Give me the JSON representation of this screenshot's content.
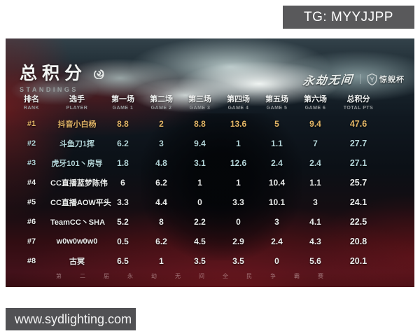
{
  "overlays": {
    "telegram_badge": "TG: MYYJJPP",
    "website_badge": "www.sydlighting.com"
  },
  "header": {
    "title": "总积分",
    "subtitle": "STANDINGS",
    "game_logo": "永劫无间",
    "event_logo": "惊鲵杯"
  },
  "footer_watermark": "第二届永劫无间全民争霸赛",
  "table": {
    "columns": [
      {
        "zh": "排名",
        "en": "RANK"
      },
      {
        "zh": "选手",
        "en": "PLAYER"
      },
      {
        "zh": "第一场",
        "en": "GAME 1"
      },
      {
        "zh": "第二场",
        "en": "GAME 2"
      },
      {
        "zh": "第三场",
        "en": "GAME 3"
      },
      {
        "zh": "第四场",
        "en": "GAME 4"
      },
      {
        "zh": "第五场",
        "en": "GAME 5"
      },
      {
        "zh": "第六场",
        "en": "GAME 6"
      },
      {
        "zh": "总积分",
        "en": "TOTAL PTS"
      }
    ],
    "rows": [
      {
        "rank": "#1",
        "player": "抖音小白杨",
        "games": [
          "8.8",
          "2",
          "8.8",
          "13.6",
          "5",
          "9.4"
        ],
        "total": "47.6",
        "tier": "gold"
      },
      {
        "rank": "#2",
        "player": "斗鱼刀1挥",
        "games": [
          "6.2",
          "3",
          "9.4",
          "1",
          "1.1",
          "7"
        ],
        "total": "27.7",
        "tier": "silver"
      },
      {
        "rank": "#3",
        "player": "虎牙101丶房导",
        "games": [
          "1.8",
          "4.8",
          "3.1",
          "12.6",
          "2.4",
          "2.4"
        ],
        "total": "27.1",
        "tier": "silver"
      },
      {
        "rank": "#4",
        "player": "CC直播蓝梦陈伟",
        "games": [
          "6",
          "6.2",
          "1",
          "1",
          "10.4",
          "1.1"
        ],
        "total": "25.7",
        "tier": "white"
      },
      {
        "rank": "#5",
        "player": "CC直播AOW平头",
        "games": [
          "3.3",
          "4.4",
          "0",
          "3.3",
          "10.1",
          "3"
        ],
        "total": "24.1",
        "tier": "white"
      },
      {
        "rank": "#6",
        "player": "TeamCC丶SHA",
        "games": [
          "5.2",
          "8",
          "2.2",
          "0",
          "3",
          "4.1"
        ],
        "total": "22.5",
        "tier": "white"
      },
      {
        "rank": "#7",
        "player": "w0w0w0w0",
        "games": [
          "0.5",
          "6.2",
          "4.5",
          "2.9",
          "2.4",
          "4.3"
        ],
        "total": "20.8",
        "tier": "white"
      },
      {
        "rank": "#8",
        "player": "古冥",
        "games": [
          "6.5",
          "1",
          "3.5",
          "3.5",
          "0",
          "5.6"
        ],
        "total": "20.1",
        "tier": "white"
      }
    ]
  },
  "colors": {
    "gold": "#e2b566",
    "silver": "#b4d6da",
    "white_row": "#ebedec",
    "badge_bg": "#59595b",
    "badge2_bg": "#515154"
  }
}
